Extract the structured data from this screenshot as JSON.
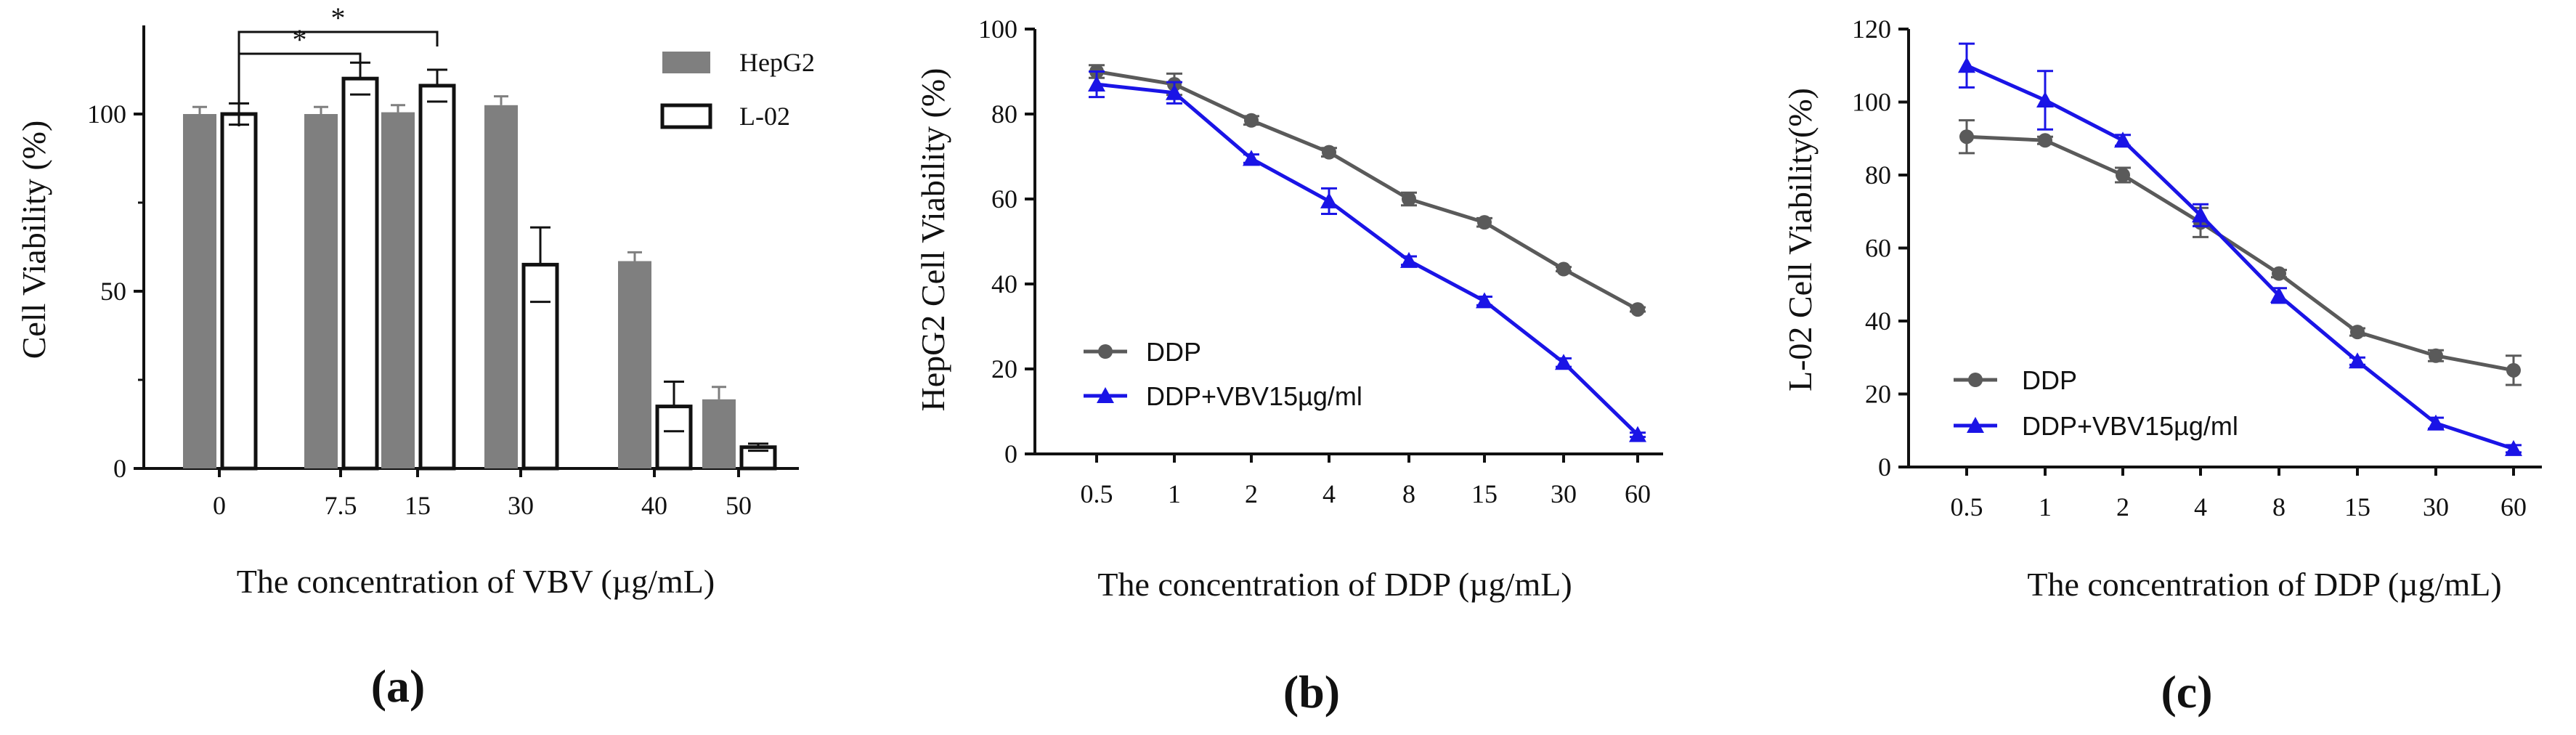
{
  "chart_data": [
    {
      "type": "bar",
      "panel_label": "(a)",
      "xlabel": "The concentration of VBV  (µg/mL)",
      "ylabel": "Cell Viability (%)",
      "ylim": [
        0,
        125
      ],
      "yticks": [
        0,
        50,
        100
      ],
      "categories": [
        "0",
        "7.5",
        "15",
        "30",
        "40",
        "50"
      ],
      "series": [
        {
          "name": "HepG2",
          "color": "#7f7f7f",
          "fill": "solid",
          "values": [
            100,
            100,
            100.5,
            102.5,
            58.5,
            19.5
          ],
          "errors": [
            2,
            2,
            2,
            2.5,
            2.5,
            3.5
          ]
        },
        {
          "name": "L-02",
          "color": "#111111",
          "fill": "hollow",
          "values": [
            100,
            110,
            108,
            57.5,
            17.5,
            6
          ],
          "errors": [
            3,
            4.5,
            4.5,
            10.5,
            7,
            1
          ]
        }
      ],
      "significance": [
        {
          "from": "0",
          "to": "7.5",
          "label": "*"
        },
        {
          "from": "0",
          "to": "15",
          "label": "*"
        }
      ],
      "legend_position": "top-right"
    },
    {
      "type": "line",
      "panel_label": "(b)",
      "xlabel": "The concentration of DDP  (µg/mL)",
      "ylabel": "HepG2 Cell Viability (%)",
      "ylim": [
        0,
        100
      ],
      "yticks": [
        0,
        20,
        40,
        60,
        80,
        100
      ],
      "x": [
        "0.5",
        "1",
        "2",
        "4",
        "8",
        "15",
        "30",
        "60"
      ],
      "series": [
        {
          "name": "DDP",
          "color": "#5a5a5a",
          "marker": "circle",
          "values": [
            90,
            87,
            78.5,
            71,
            60,
            54.5,
            43.5,
            34
          ],
          "errors": [
            1.5,
            2.5,
            1,
            1,
            1.5,
            1,
            0.5,
            0.5
          ]
        },
        {
          "name": "DDP+VBV15µg/ml",
          "color": "#1a14e6",
          "marker": "triangle",
          "values": [
            87,
            85,
            69.5,
            59.5,
            45.5,
            36,
            21.5,
            4.5
          ],
          "errors": [
            3,
            2.5,
            1,
            3,
            1,
            1,
            1,
            0.5
          ]
        }
      ],
      "legend_position": "bottom-left"
    },
    {
      "type": "line",
      "panel_label": "(c)",
      "xlabel": "The concentration of DDP  (µg/mL)",
      "ylabel": "L-02 Cell Viability(%)",
      "ylim": [
        0,
        120
      ],
      "yticks": [
        0,
        20,
        40,
        60,
        80,
        100,
        120
      ],
      "x": [
        "0.5",
        "1",
        "2",
        "4",
        "8",
        "15",
        "30",
        "60"
      ],
      "series": [
        {
          "name": "DDP",
          "color": "#5a5a5a",
          "marker": "circle",
          "values": [
            90.5,
            89.5,
            80,
            67,
            53,
            37,
            30.5,
            26.5
          ],
          "errors": [
            4.5,
            1,
            2,
            4,
            1,
            1,
            1.5,
            4
          ]
        },
        {
          "name": "DDP+VBV15µg/ml",
          "color": "#1a14e6",
          "marker": "triangle",
          "values": [
            110,
            100.5,
            89.5,
            69,
            47,
            29,
            12,
            5
          ],
          "errors": [
            6,
            8,
            1.5,
            3,
            2,
            1,
            1.5,
            1
          ]
        }
      ],
      "legend_position": "bottom-left"
    }
  ]
}
